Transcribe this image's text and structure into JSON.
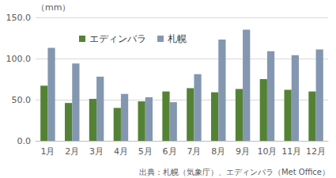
{
  "chart_data": {
    "type": "bar",
    "ylabel": "（mm）",
    "annotations": [
      "出典：札幌（気象庁）、エディンバラ（Met Office）"
    ],
    "categories": [
      "1月",
      "2月",
      "3月",
      "4月",
      "5月",
      "6月",
      "7月",
      "8月",
      "9月",
      "10月",
      "11月",
      "12月"
    ],
    "series": [
      {
        "name": "エディンバラ",
        "color": "#548235",
        "values": [
          67,
          46,
          51,
          40,
          48,
          60,
          64,
          59,
          63,
          75,
          62,
          60
        ]
      },
      {
        "name": "札幌",
        "color": "#8497b0",
        "values": [
          113,
          94,
          78,
          57,
          53,
          47,
          81,
          123,
          135,
          109,
          104,
          111
        ]
      }
    ],
    "ylim": [
      0,
      150
    ],
    "yticks": [
      {
        "value": 0,
        "label": "0.0"
      },
      {
        "value": 50,
        "label": "50.0"
      },
      {
        "value": 100,
        "label": "100.0"
      },
      {
        "value": 150,
        "label": "150.0"
      }
    ],
    "grid": true,
    "legend": "top"
  }
}
